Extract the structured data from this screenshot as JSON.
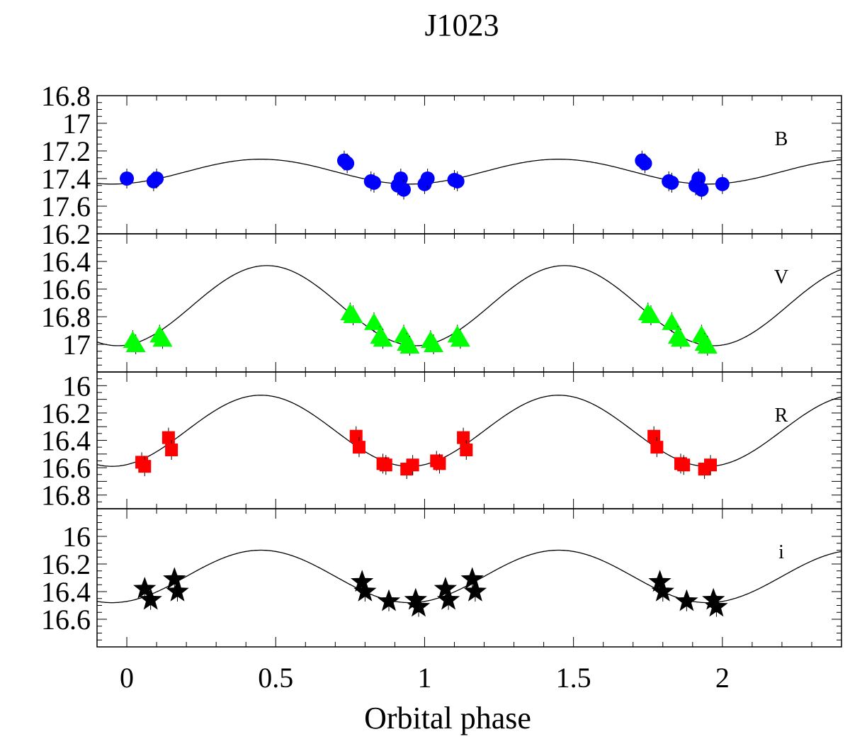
{
  "chart_data": {
    "type": "scatter",
    "title": "J1023",
    "xlabel": "Orbital phase",
    "xlim": [
      -0.1,
      2.4
    ],
    "x_ticks": [
      0,
      0.5,
      1,
      1.5,
      2
    ],
    "x_tick_labels": [
      "0",
      "0.5",
      "1",
      "1.5",
      "2"
    ],
    "panels": [
      {
        "band": "B",
        "ylim": [
          17.8,
          16.8
        ],
        "y_ticks": [
          16.8,
          17,
          17.2,
          17.4,
          17.6
        ],
        "y_tick_labels": [
          "16.8",
          "17",
          "17.2",
          "17.4",
          "17.6"
        ],
        "y_top_label": "16.2",
        "marker": "circle",
        "color": "#0000ff",
        "model": {
          "mean": 17.35,
          "amp": 0.09,
          "phase_max": 0.45
        },
        "points": [
          [
            0.0,
            17.4
          ],
          [
            0.09,
            17.42
          ],
          [
            0.1,
            17.4
          ],
          [
            0.73,
            17.27
          ],
          [
            0.74,
            17.29
          ],
          [
            0.82,
            17.42
          ],
          [
            0.83,
            17.43
          ],
          [
            0.91,
            17.45
          ],
          [
            0.92,
            17.4
          ],
          [
            0.93,
            17.48
          ],
          [
            1.0,
            17.44
          ],
          [
            1.01,
            17.4
          ],
          [
            1.1,
            17.41
          ],
          [
            1.11,
            17.42
          ],
          [
            1.73,
            17.27
          ],
          [
            1.74,
            17.29
          ],
          [
            1.82,
            17.42
          ],
          [
            1.83,
            17.43
          ],
          [
            1.91,
            17.45
          ],
          [
            1.92,
            17.4
          ],
          [
            1.93,
            17.48
          ],
          [
            2.0,
            17.44
          ]
        ]
      },
      {
        "band": "V",
        "ylim": [
          17.2,
          16.2
        ],
        "y_ticks": [
          16.4,
          16.6,
          16.8,
          17
        ],
        "y_tick_labels": [
          "16.4",
          "16.6",
          "16.8",
          "17"
        ],
        "marker": "triangle",
        "color": "#00ff00",
        "model": {
          "mean": 16.72,
          "amp": 0.29,
          "phase_max": 0.47
        },
        "points": [
          [
            0.02,
            16.97
          ],
          [
            0.03,
            17.0
          ],
          [
            0.11,
            16.93
          ],
          [
            0.12,
            16.96
          ],
          [
            0.75,
            16.77
          ],
          [
            0.76,
            16.79
          ],
          [
            0.83,
            16.84
          ],
          [
            0.85,
            16.94
          ],
          [
            0.86,
            16.96
          ],
          [
            0.93,
            16.93
          ],
          [
            0.94,
            16.99
          ],
          [
            0.95,
            17.01
          ],
          [
            1.02,
            16.97
          ],
          [
            1.03,
            17.0
          ],
          [
            1.11,
            16.93
          ],
          [
            1.12,
            16.96
          ],
          [
            1.75,
            16.77
          ],
          [
            1.76,
            16.79
          ],
          [
            1.83,
            16.84
          ],
          [
            1.85,
            16.94
          ],
          [
            1.86,
            16.96
          ],
          [
            1.93,
            16.93
          ],
          [
            1.94,
            16.99
          ],
          [
            1.95,
            17.01
          ]
        ]
      },
      {
        "band": "R",
        "ylim": [
          16.9,
          15.9
        ],
        "y_ticks": [
          16,
          16.2,
          16.4,
          16.6,
          16.8
        ],
        "y_tick_labels": [
          "16",
          "16.2",
          "16.4",
          "16.6",
          "16.8"
        ],
        "marker": "square",
        "color": "#ff0000",
        "model": {
          "mean": 16.33,
          "amp": 0.26,
          "phase_max": 0.45
        },
        "points": [
          [
            0.05,
            16.56
          ],
          [
            0.06,
            16.59
          ],
          [
            0.14,
            16.38
          ],
          [
            0.15,
            16.47
          ],
          [
            0.77,
            16.37
          ],
          [
            0.78,
            16.45
          ],
          [
            0.86,
            16.57
          ],
          [
            0.87,
            16.58
          ],
          [
            0.94,
            16.61
          ],
          [
            0.96,
            16.58
          ],
          [
            1.04,
            16.55
          ],
          [
            1.05,
            16.57
          ],
          [
            1.13,
            16.38
          ],
          [
            1.14,
            16.47
          ],
          [
            1.77,
            16.37
          ],
          [
            1.78,
            16.45
          ],
          [
            1.86,
            16.57
          ],
          [
            1.87,
            16.58
          ],
          [
            1.94,
            16.61
          ],
          [
            1.96,
            16.58
          ]
        ]
      },
      {
        "band": "i",
        "ylim": [
          16.8,
          15.8
        ],
        "y_ticks": [
          16,
          16.2,
          16.4,
          16.6
        ],
        "y_tick_labels": [
          "16",
          "16.2",
          "16.4",
          "16.6"
        ],
        "marker": "star",
        "color": "#000000",
        "model": {
          "mean": 16.29,
          "amp": 0.19,
          "phase_max": 0.45
        },
        "points": [
          [
            0.06,
            16.38
          ],
          [
            0.08,
            16.46
          ],
          [
            0.16,
            16.31
          ],
          [
            0.17,
            16.4
          ],
          [
            0.79,
            16.33
          ],
          [
            0.8,
            16.4
          ],
          [
            0.88,
            16.47
          ],
          [
            0.97,
            16.46
          ],
          [
            0.98,
            16.51
          ],
          [
            1.07,
            16.38
          ],
          [
            1.08,
            16.46
          ],
          [
            1.16,
            16.31
          ],
          [
            1.17,
            16.4
          ],
          [
            1.79,
            16.33
          ],
          [
            1.8,
            16.4
          ],
          [
            1.88,
            16.47
          ],
          [
            1.97,
            16.46
          ],
          [
            1.98,
            16.51
          ]
        ]
      }
    ]
  }
}
